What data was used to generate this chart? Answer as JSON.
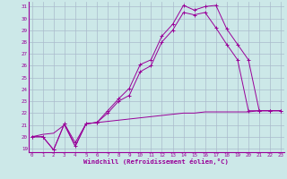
{
  "xlabel": "Windchill (Refroidissement éolien,°C)",
  "bg_color": "#cce8e8",
  "grid_color": "#aabbcc",
  "line_color": "#990099",
  "xlim": [
    -0.3,
    23.3
  ],
  "ylim": [
    18.7,
    31.4
  ],
  "yticks": [
    19,
    20,
    21,
    22,
    23,
    24,
    25,
    26,
    27,
    28,
    29,
    30,
    31
  ],
  "xticks": [
    0,
    1,
    2,
    3,
    4,
    5,
    6,
    7,
    8,
    9,
    10,
    11,
    12,
    13,
    14,
    15,
    16,
    17,
    18,
    19,
    20,
    21,
    22,
    23
  ],
  "line1_x": [
    0,
    1,
    2,
    3,
    4,
    5,
    6,
    7,
    8,
    9,
    10,
    11,
    12,
    13,
    14,
    15,
    16,
    17,
    18,
    19,
    20,
    21,
    22,
    23
  ],
  "line1_y": [
    20.0,
    20.0,
    18.9,
    21.1,
    19.2,
    21.1,
    21.2,
    22.2,
    23.2,
    24.1,
    26.1,
    26.5,
    28.5,
    29.5,
    31.1,
    30.7,
    31.0,
    31.1,
    29.1,
    27.8,
    26.5,
    22.2,
    22.2,
    22.2
  ],
  "line2_x": [
    0,
    1,
    2,
    3,
    4,
    5,
    6,
    7,
    8,
    9,
    10,
    11,
    12,
    13,
    14,
    15,
    16,
    17,
    18,
    19,
    20,
    21,
    22,
    23
  ],
  "line2_y": [
    20.0,
    20.0,
    18.9,
    21.1,
    19.5,
    21.1,
    21.2,
    22.0,
    23.0,
    23.5,
    25.5,
    26.0,
    28.0,
    29.0,
    30.5,
    30.3,
    30.5,
    29.2,
    27.8,
    26.5,
    22.2,
    22.2,
    22.2,
    22.2
  ],
  "line3_x": [
    0,
    1,
    2,
    3,
    4,
    5,
    6,
    7,
    8,
    9,
    10,
    11,
    12,
    13,
    14,
    15,
    16,
    17,
    18,
    19,
    20,
    21,
    22,
    23
  ],
  "line3_y": [
    20.0,
    20.2,
    20.3,
    21.0,
    19.2,
    21.1,
    21.2,
    21.3,
    21.4,
    21.5,
    21.6,
    21.7,
    21.8,
    21.9,
    22.0,
    22.0,
    22.1,
    22.1,
    22.1,
    22.1,
    22.1,
    22.2,
    22.2,
    22.2
  ]
}
